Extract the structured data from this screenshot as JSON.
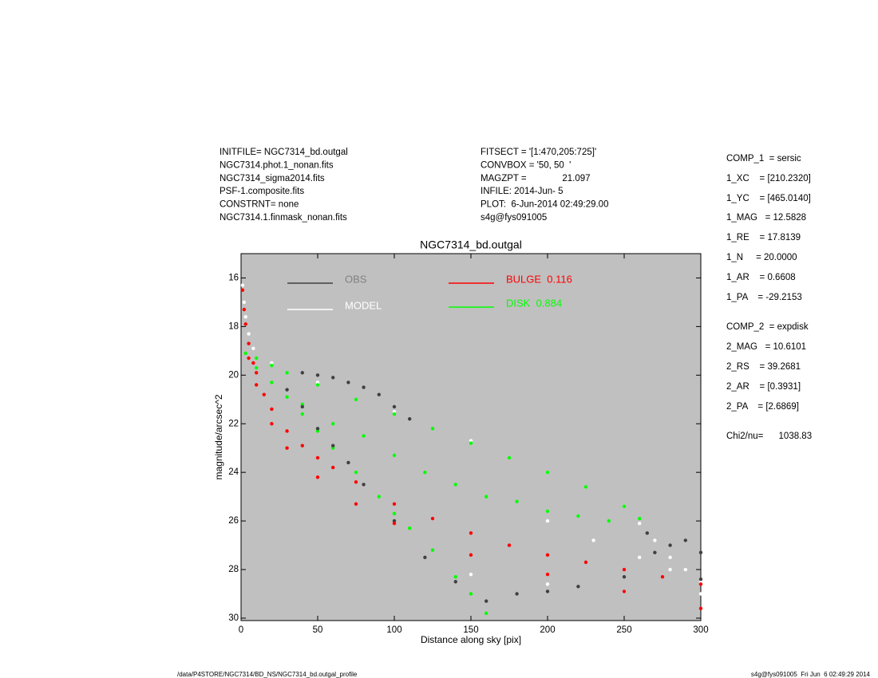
{
  "chart_data": {
    "type": "scatter",
    "title": "NGC7314_bd.outgal",
    "x_label": "Distance along sky [pix]",
    "y_label": "magnitude/arcsec^2",
    "xlim": [
      0,
      300
    ],
    "xticks": [
      0,
      50,
      100,
      150,
      200,
      250,
      300
    ],
    "ylim": [
      30.1,
      15
    ],
    "yticks": [
      16,
      18,
      20,
      22,
      24,
      26,
      28,
      30
    ],
    "series": [
      {
        "name": "MODEL",
        "color": "#ffffff",
        "x": [
          1,
          2,
          3,
          5,
          8,
          20,
          50,
          100,
          150,
          200,
          250,
          260,
          270,
          280,
          290,
          300,
          150,
          200,
          250,
          300,
          200,
          230,
          260,
          280
        ],
        "y": [
          16.3,
          17,
          17.6,
          18.3,
          18.9,
          19.5,
          20.3,
          21.5,
          22.7,
          24,
          25.4,
          26.1,
          26.8,
          27.5,
          28,
          28.5,
          28.2,
          28.6,
          28.9,
          29,
          26,
          26.8,
          27.5,
          28
        ]
      },
      {
        "name": "DISK  0.884",
        "color": "#00ff00",
        "x": [
          3,
          10,
          20,
          30,
          50,
          75,
          100,
          125,
          150,
          175,
          200,
          225,
          250,
          260,
          10,
          20,
          30,
          40,
          50,
          60,
          75,
          90,
          100,
          110,
          125,
          140,
          150,
          160,
          40,
          60,
          80,
          100,
          120,
          140,
          160,
          180,
          200,
          220,
          240
        ],
        "y": [
          19.1,
          19.3,
          19.6,
          19.9,
          20.4,
          21,
          21.6,
          22.2,
          22.8,
          23.4,
          24,
          24.6,
          25.4,
          25.9,
          19.7,
          20.3,
          20.9,
          21.6,
          22.3,
          23,
          24,
          25,
          25.7,
          26.3,
          27.2,
          28.3,
          29,
          29.8,
          21.2,
          22,
          22.5,
          23.3,
          24,
          24.5,
          25,
          25.2,
          25.6,
          25.8,
          26
        ]
      },
      {
        "name": "OBS",
        "color": "#404040",
        "x": [
          40,
          50,
          60,
          70,
          80,
          90,
          100,
          110,
          30,
          40,
          50,
          60,
          70,
          80,
          100,
          120,
          140,
          160,
          180,
          200,
          220,
          250,
          265,
          270,
          280,
          290,
          300,
          300
        ],
        "y": [
          19.9,
          20,
          20.1,
          20.3,
          20.5,
          20.8,
          21.3,
          21.8,
          20.6,
          21.3,
          22.2,
          22.9,
          23.6,
          24.5,
          26,
          27.5,
          28.5,
          29.3,
          29,
          28.9,
          28.7,
          28.3,
          26.5,
          27.3,
          27,
          26.8,
          27.3,
          28.4
        ]
      },
      {
        "name": "BULGE  0.116",
        "color": "#ff0000",
        "x": [
          1,
          2,
          3,
          5,
          8,
          10,
          15,
          20,
          30,
          40,
          50,
          60,
          75,
          100,
          125,
          150,
          175,
          200,
          225,
          250,
          275,
          300,
          5,
          10,
          20,
          30,
          50,
          75,
          100,
          150,
          200,
          250,
          300
        ],
        "y": [
          16.5,
          17.3,
          17.9,
          18.7,
          19.5,
          19.9,
          20.8,
          21.4,
          22.3,
          22.9,
          23.4,
          23.8,
          24.4,
          25.3,
          25.9,
          26.5,
          27,
          27.4,
          27.7,
          28,
          28.3,
          28.6,
          19.3,
          20.4,
          22,
          23,
          24.2,
          25.3,
          26.1,
          27.4,
          28.2,
          28.9,
          29.6
        ]
      }
    ],
    "legend_order": [
      "OBS",
      "MODEL",
      "BULGE  0.116",
      "DISK  0.884"
    ]
  },
  "header_left": [
    "INITFILE= NGC7314_bd.outgal",
    "NGC7314.phot.1_nonan.fits",
    "NGC7314_sigma2014.fits",
    "PSF-1.composite.fits",
    "CONSTRNT= none",
    "NGC7314.1.finmask_nonan.fits"
  ],
  "header_middle": [
    "FITSECT = '[1:470,205:725]'",
    "CONVBOX = '50, 50  '",
    "MAGZPT =              21.097",
    "INFILE: 2014-Jun- 5",
    "PLOT:  6-Jun-2014 02:49:29.00",
    "s4g@fys091005"
  ],
  "params": [
    "COMP_1  = sersic",
    "1_XC    = [210.2320]",
    "1_YC    = [465.0140]",
    "1_MAG   = 12.5828",
    "1_RE    = 17.8139",
    "1_N     = 20.0000",
    "1_AR    = 0.6608",
    "1_PA    = -29.2153",
    "COMP_2  = expdisk",
    "2_MAG   = 10.6101",
    "2_RS    = 39.2681",
    "2_AR    = [0.3931]",
    "2_PA    = [2.6869]",
    "Chi2/nu=      1038.83"
  ],
  "footer_left": "/data/P4STORE/NGC7314/BD_NS/NGC7314_bd.outgal_profile",
  "footer_right": "s4g@fys091005  Fri Jun  6 02:49:29 2014"
}
